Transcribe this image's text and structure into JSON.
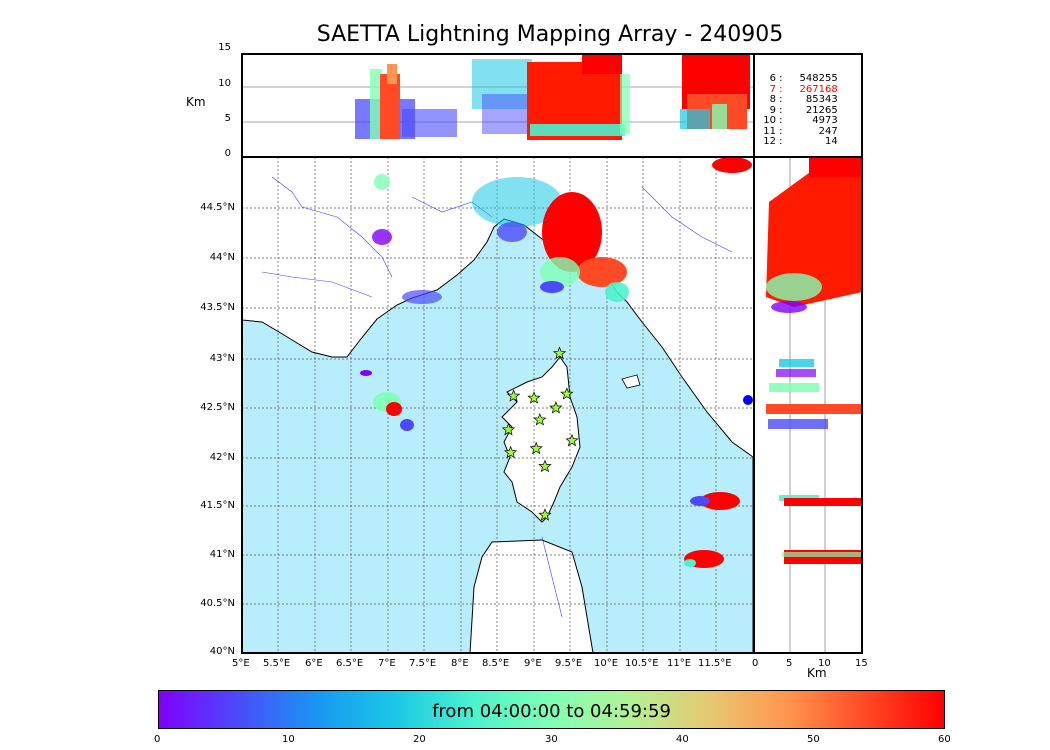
{
  "title": "SAETTA Lightning Mapping Array - 240905",
  "top_panel": {
    "ylabel": "Km",
    "y_ticks": [
      "15",
      "10",
      "5",
      "0"
    ]
  },
  "side_panel": {
    "xlabel": "Km",
    "x_ticks": [
      "0",
      "5",
      "10",
      "15"
    ]
  },
  "map": {
    "lon_ticks": [
      "5°E",
      "5.5°E",
      "6°E",
      "6.5°E",
      "7°E",
      "7.5°E",
      "8°E",
      "8.5°E",
      "9°E",
      "9.5°E",
      "10°E",
      "10.5°E",
      "11°E",
      "11.5°E"
    ],
    "lat_ticks": [
      "44.5°N",
      "44°N",
      "43.5°N",
      "43°N",
      "42.5°N",
      "42°N",
      "41.5°N",
      "41°N",
      "40.5°N",
      "40°N"
    ],
    "sea_color": "#b8eefc",
    "station_icon": "star-icon",
    "station_color": "#99ff33",
    "stations": [
      {
        "lon": 9.35,
        "lat": 43.0
      },
      {
        "lon": 8.72,
        "lat": 42.57
      },
      {
        "lon": 9.0,
        "lat": 42.55
      },
      {
        "lon": 9.45,
        "lat": 42.59
      },
      {
        "lon": 9.3,
        "lat": 42.45
      },
      {
        "lon": 9.08,
        "lat": 42.33
      },
      {
        "lon": 8.65,
        "lat": 42.23
      },
      {
        "lon": 9.52,
        "lat": 42.12
      },
      {
        "lon": 9.03,
        "lat": 42.04
      },
      {
        "lon": 8.68,
        "lat": 42.0
      },
      {
        "lon": 9.15,
        "lat": 41.86
      },
      {
        "lon": 9.15,
        "lat": 41.37
      }
    ]
  },
  "counts": [
    {
      "label": "6",
      "value": "548255",
      "color": "#000000"
    },
    {
      "label": "7",
      "value": "267168",
      "color": "#ff0000"
    },
    {
      "label": "8",
      "value": "85343",
      "color": "#000000"
    },
    {
      "label": "9",
      "value": "21265",
      "color": "#000000"
    },
    {
      "label": "10",
      "value": "4973",
      "color": "#000000"
    },
    {
      "label": "11",
      "value": "247",
      "color": "#000000"
    },
    {
      "label": "12",
      "value": "14",
      "color": "#000000"
    }
  ],
  "colorbar": {
    "label": "from 04:00:00 to 04:59:59",
    "ticks": [
      "0",
      "10",
      "20",
      "30",
      "40",
      "50",
      "60"
    ],
    "colormap": "rainbow"
  }
}
